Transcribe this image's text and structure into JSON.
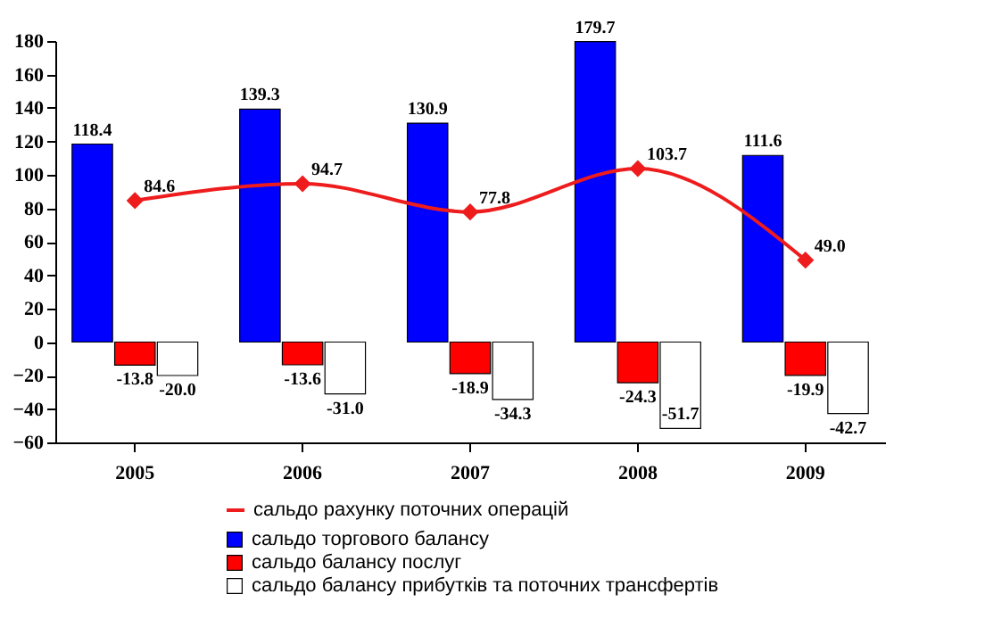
{
  "chart_data": {
    "type": "bar",
    "categories": [
      "2005",
      "2006",
      "2007",
      "2008",
      "2009"
    ],
    "series": [
      {
        "name": "сальдо рахунку поточних операцій",
        "type": "line",
        "color": "#ee1c1c",
        "marker": "diamond",
        "values": [
          84.6,
          94.7,
          77.8,
          103.7,
          49.0
        ],
        "value_labels": [
          "84.6",
          "94.7",
          "77.8",
          "103.7",
          "49.0"
        ]
      },
      {
        "name": "сальдо торгового балансу",
        "color": "#0000ff",
        "values": [
          118.4,
          139.3,
          130.9,
          179.7,
          111.6
        ],
        "value_labels": [
          "118.4",
          "139.3",
          "130.9",
          "179.7",
          "111.6"
        ]
      },
      {
        "name": "сальдо балансу послуг",
        "color": "#ff0000",
        "values": [
          -13.8,
          -13.6,
          -18.9,
          -24.3,
          -19.9
        ],
        "value_labels": [
          "-13.8",
          "-13.6",
          "-18.9",
          "-24.3",
          "-19.9"
        ]
      },
      {
        "name": "сальдо балансу прибутків та поточних трансфертів",
        "color": "#ffffff",
        "values": [
          -20.0,
          -31.0,
          -34.3,
          -51.7,
          -42.7
        ],
        "value_labels": [
          "-20.0",
          "-31.0",
          "-34.3",
          "-51.7",
          "-42.7"
        ]
      }
    ],
    "ylim": [
      -60,
      180
    ],
    "yticks": [
      -60,
      -40,
      -20,
      0,
      20,
      40,
      60,
      80,
      100,
      120,
      140,
      160,
      180
    ],
    "data_labels": true,
    "legend": "bottom"
  }
}
